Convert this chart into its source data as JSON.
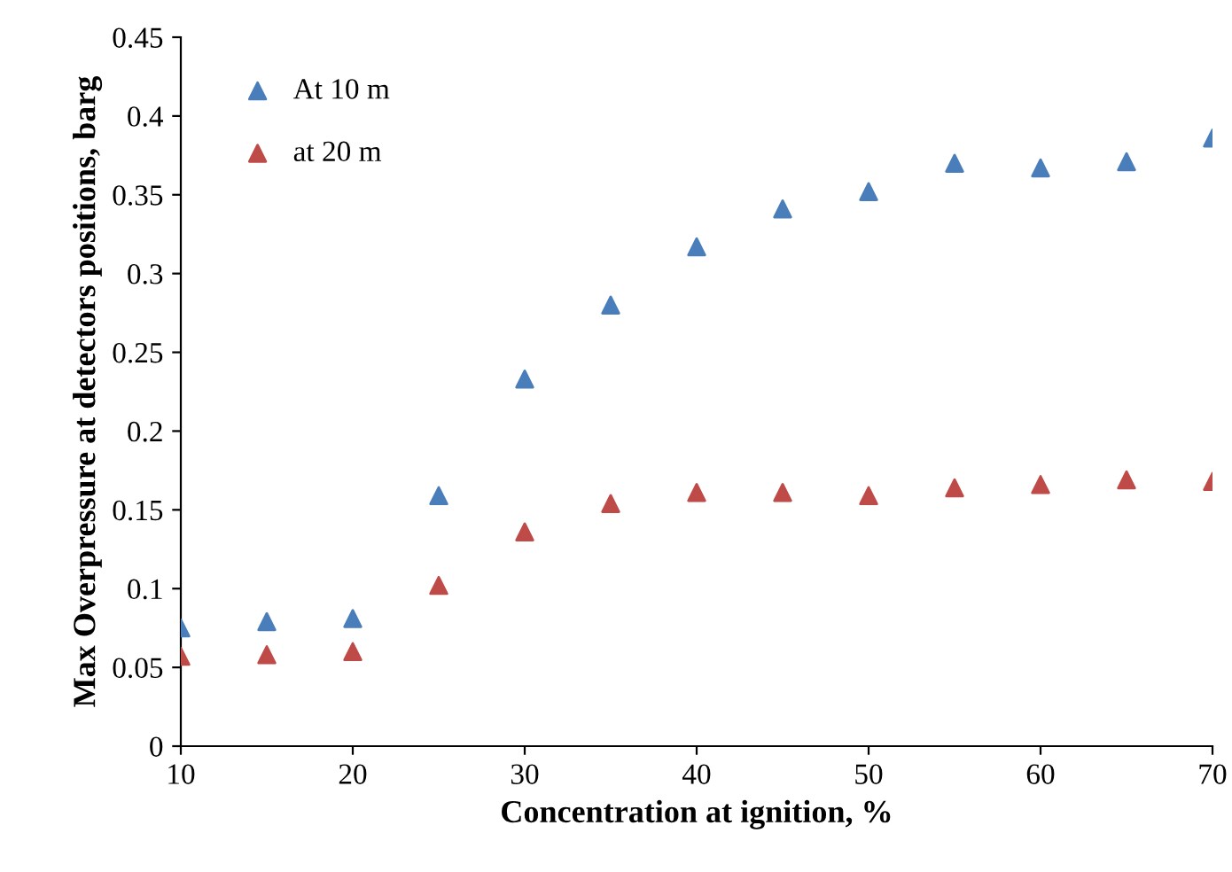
{
  "chart_data": {
    "type": "scatter",
    "xlabel": "Concentration at ignition, %",
    "ylabel": "Max Overpressure at detectors positions, barg",
    "x": [
      10,
      15,
      20,
      25,
      30,
      35,
      40,
      45,
      50,
      55,
      60,
      65,
      70
    ],
    "series": [
      {
        "name": "At 10 m",
        "color": "#4a7ebb",
        "values": [
          0.075,
          0.079,
          0.081,
          0.159,
          0.233,
          0.28,
          0.317,
          0.341,
          0.352,
          0.37,
          0.367,
          0.371,
          0.386
        ]
      },
      {
        "name": "at 20 m",
        "color": "#be4b48",
        "values": [
          0.057,
          0.058,
          0.06,
          0.102,
          0.136,
          0.154,
          0.161,
          0.161,
          0.159,
          0.164,
          0.166,
          0.169,
          0.168
        ]
      }
    ],
    "xlim": [
      10,
      70
    ],
    "xticks": [
      10,
      20,
      30,
      40,
      50,
      60,
      70
    ],
    "ylim": [
      0,
      0.45
    ],
    "yticks": [
      0,
      0.05,
      0.1,
      0.15,
      0.2,
      0.25,
      0.3,
      0.35,
      0.4,
      0.45
    ],
    "marker": "triangle",
    "grid": false,
    "legend": "top left"
  }
}
